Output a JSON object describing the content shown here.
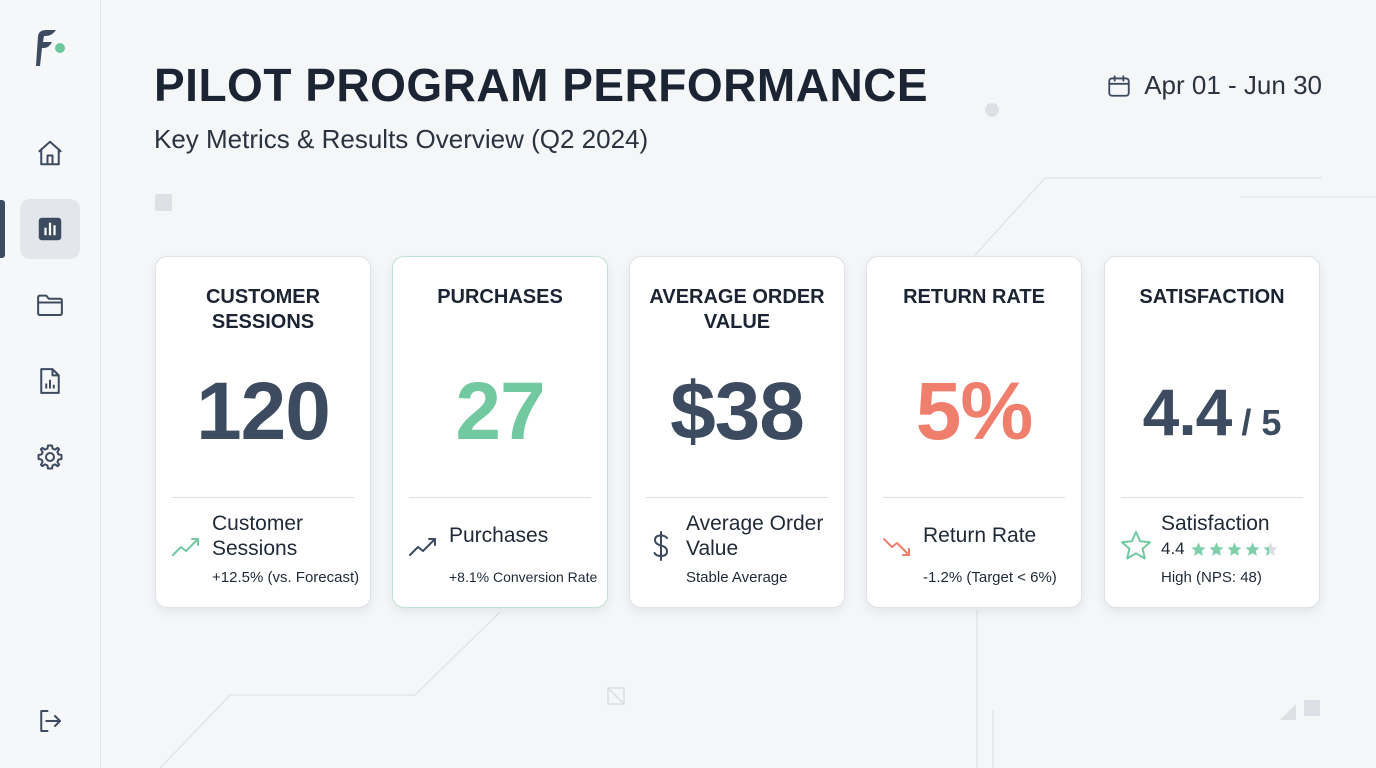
{
  "header": {
    "title": "PILOT PROGRAM PERFORMANCE",
    "subtitle": "Key Metrics & Results Overview (Q2 2024)",
    "date_range": "Apr 01 - Jun 30"
  },
  "sidebar": {
    "items": [
      {
        "icon": "home-icon",
        "active": false
      },
      {
        "icon": "bar-chart-icon",
        "active": true
      },
      {
        "icon": "folder-icon",
        "active": false
      },
      {
        "icon": "report-icon",
        "active": false
      },
      {
        "icon": "gear-icon",
        "active": false
      }
    ],
    "bottom_icon": "logout-icon"
  },
  "colors": {
    "primary": "#3d4b60",
    "positive": "#72c9a0",
    "negative": "#ef7e6d",
    "star": "#7ecfaa"
  },
  "cards": [
    {
      "label": "CUSTOMER SESSIONS",
      "value": "120",
      "value_color": "#3d4b60",
      "footer_icon": "trend-up-icon",
      "footer_title": "Customer Sessions",
      "footer_sub": "+12.5% (vs. Forecast)"
    },
    {
      "label": "PURCHASES",
      "value": "27",
      "value_color": "#72c9a0",
      "footer_icon": "trend-up-icon",
      "footer_title": "Purchases",
      "footer_sub": "+8.1% Conversion Rate"
    },
    {
      "label": "AVERAGE ORDER VALUE",
      "value": "$38",
      "value_color": "#3d4b60",
      "footer_icon": "dollar-icon",
      "footer_title": "Average Order Value",
      "footer_sub": "Stable Average"
    },
    {
      "label": "RETURN RATE",
      "value": "5%",
      "value_color": "#ef7e6d",
      "footer_icon": "trend-down-icon",
      "footer_title": "Return Rate",
      "footer_sub": "-1.2% (Target < 6%)"
    },
    {
      "label": "SATISFACTION",
      "value": "4.4",
      "value_suffix": " / 5",
      "value_color": "#3d4b60",
      "footer_icon": "star-outline-icon",
      "footer_title": "Satisfaction",
      "rating_value": "4.4",
      "rating": 4.4,
      "rating_max": 5,
      "footer_sub": "High (NPS: 48)"
    }
  ]
}
